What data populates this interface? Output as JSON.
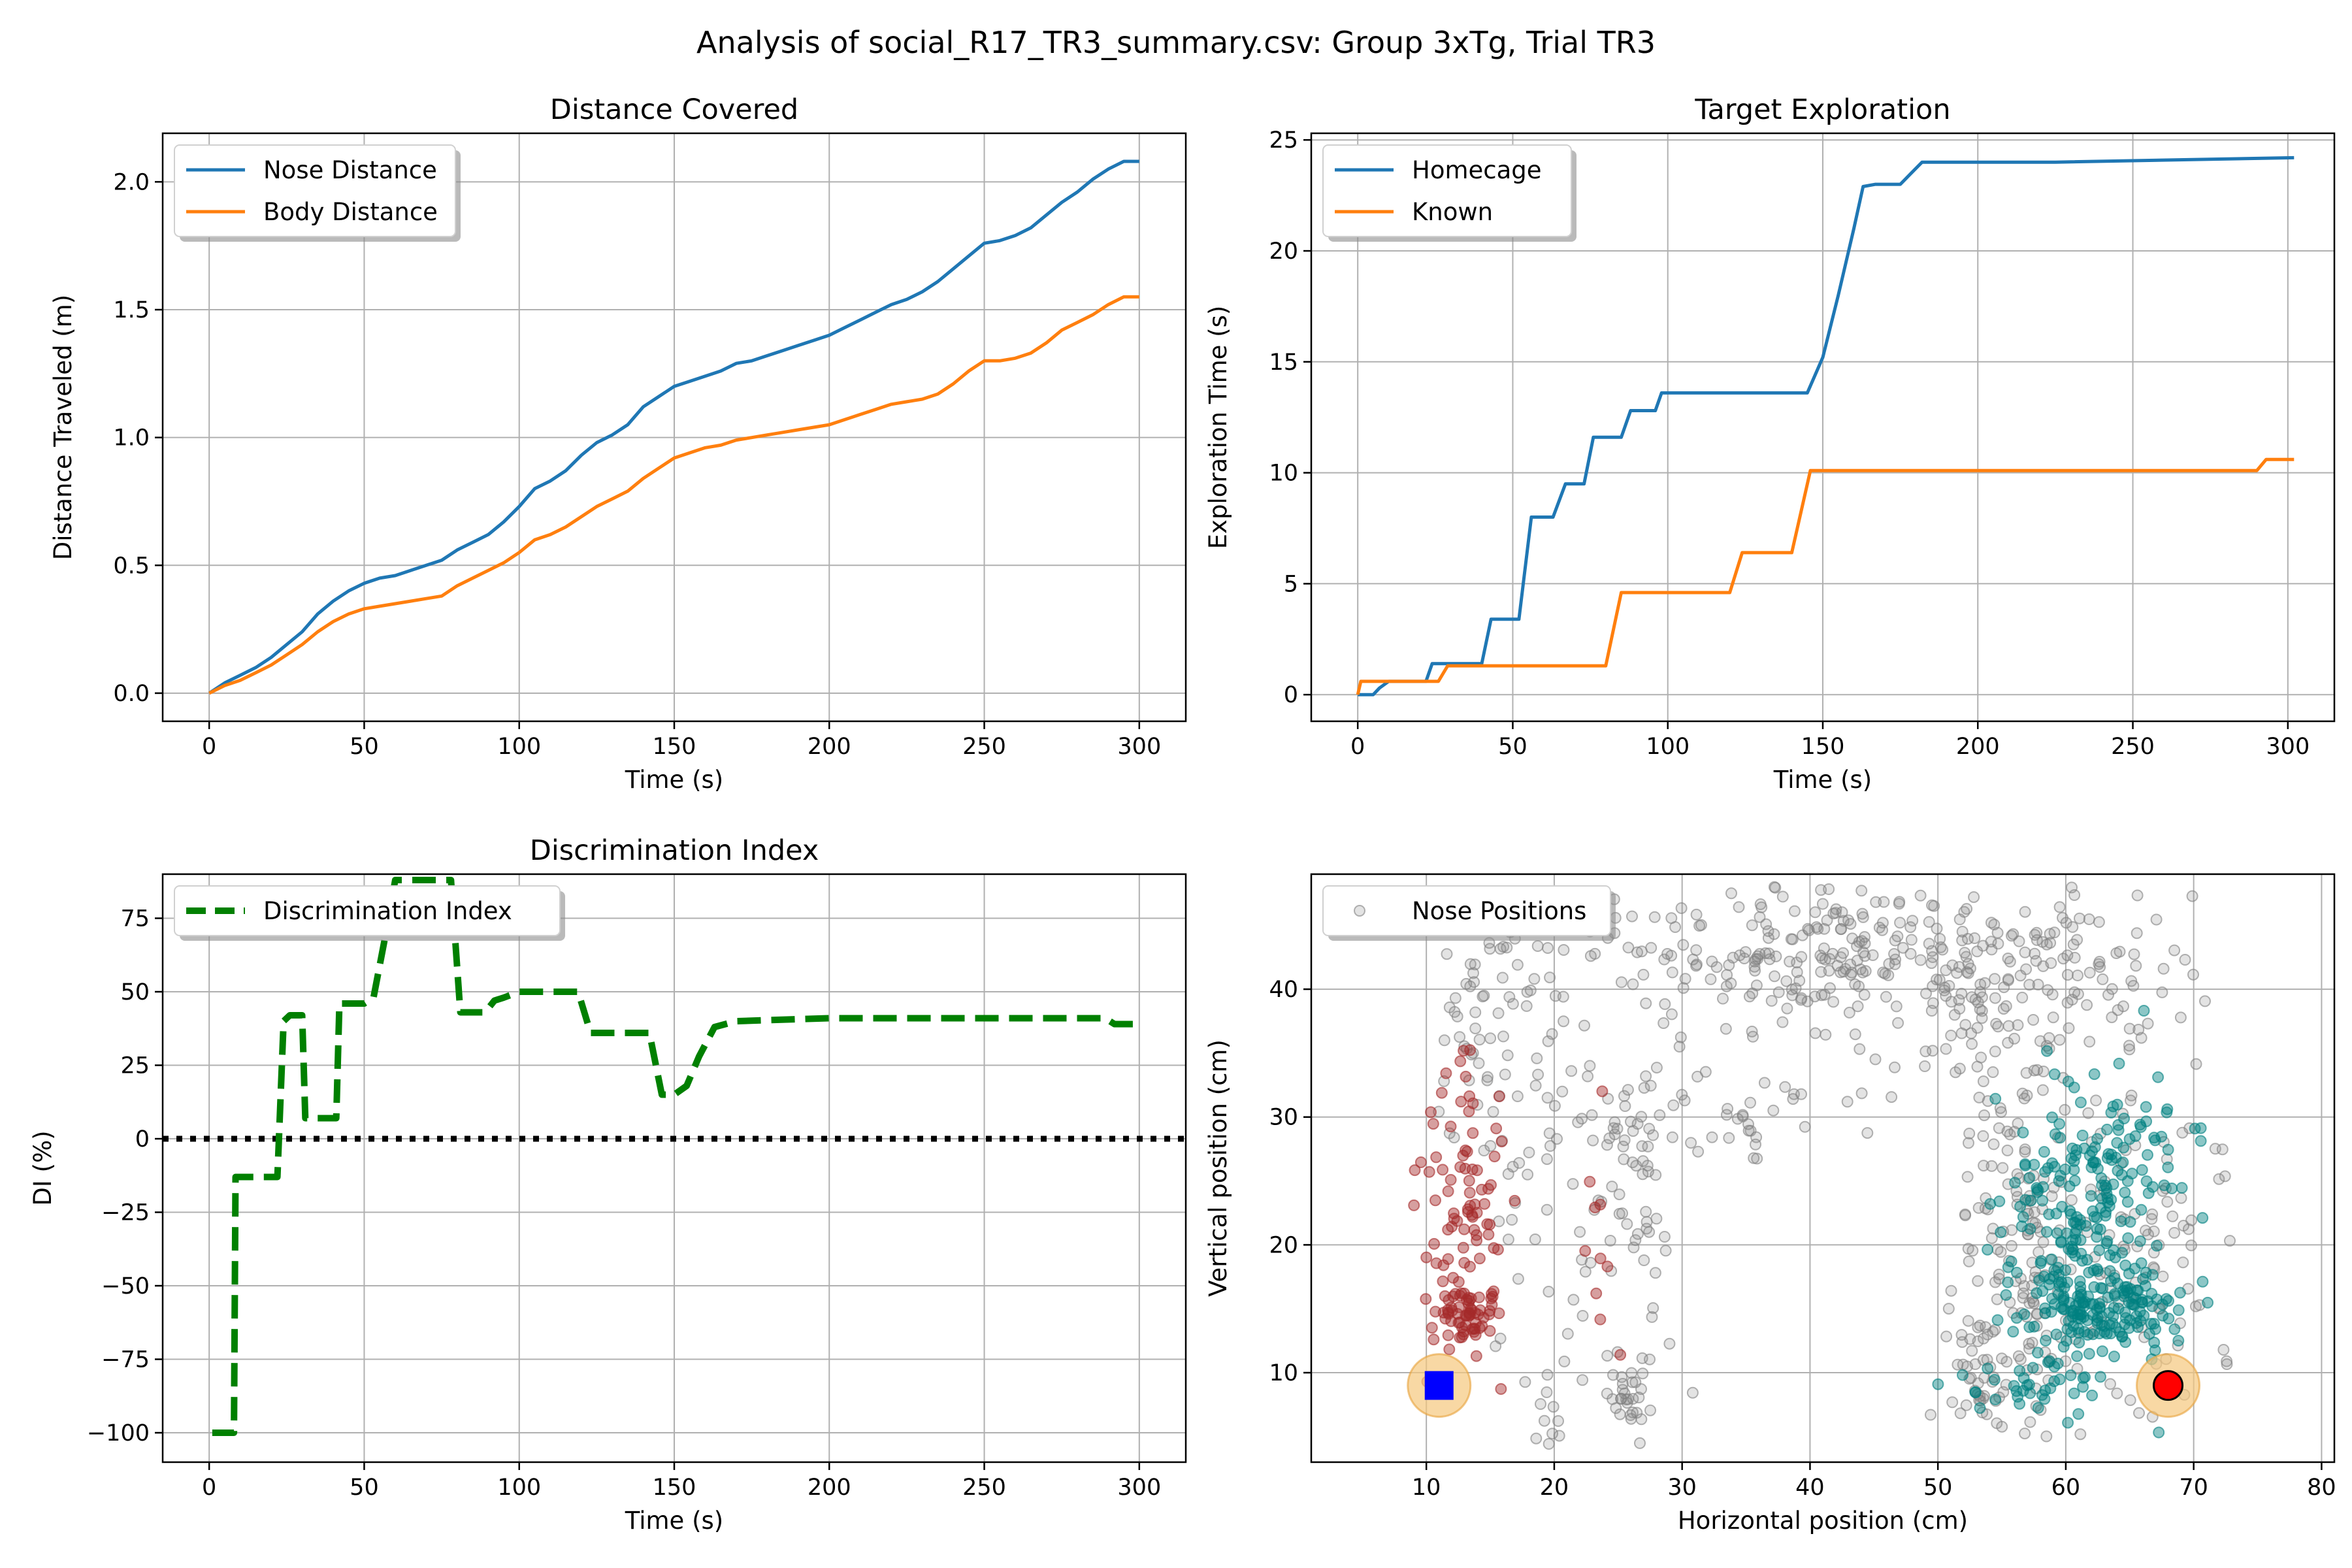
{
  "figure_title": "Analysis of social_R17_TR3_summary.csv: Group 3xTg, Trial TR3",
  "colors": {
    "blue": "#1f77b4",
    "orange": "#ff7f0e",
    "green": "#008000",
    "grid": "#b0b0b0",
    "gray": "#808080",
    "brown": "#a52a2a",
    "teal": "#008080",
    "object_halo": "#f5c77e"
  },
  "chart_data": [
    {
      "type": "line",
      "title": "Distance Covered",
      "xlabel": "Time (s)",
      "ylabel": "Distance Traveled (m)",
      "xlim": [
        -15,
        315
      ],
      "ylim": [
        -0.11,
        2.19
      ],
      "xticks": [
        0,
        50,
        100,
        150,
        200,
        250,
        300
      ],
      "yticks": [
        0.0,
        0.5,
        1.0,
        1.5,
        2.0
      ],
      "ytick_labels": [
        "0.0",
        "0.5",
        "1.0",
        "1.5",
        "2.0"
      ],
      "grid": true,
      "legend": "upper-left",
      "series": [
        {
          "name": "Nose Distance",
          "color": "#1f77b4",
          "x": [
            0,
            5,
            10,
            15,
            20,
            25,
            30,
            35,
            40,
            45,
            50,
            55,
            60,
            65,
            70,
            75,
            80,
            85,
            90,
            95,
            100,
            105,
            110,
            115,
            120,
            125,
            130,
            135,
            140,
            145,
            150,
            155,
            160,
            165,
            170,
            175,
            180,
            185,
            190,
            195,
            200,
            205,
            210,
            215,
            220,
            225,
            230,
            235,
            240,
            245,
            250,
            255,
            260,
            265,
            270,
            275,
            280,
            285,
            290,
            295,
            300
          ],
          "y": [
            0.0,
            0.04,
            0.07,
            0.1,
            0.14,
            0.19,
            0.24,
            0.31,
            0.36,
            0.4,
            0.43,
            0.45,
            0.46,
            0.48,
            0.5,
            0.52,
            0.56,
            0.59,
            0.62,
            0.67,
            0.73,
            0.8,
            0.83,
            0.87,
            0.93,
            0.98,
            1.01,
            1.05,
            1.12,
            1.16,
            1.2,
            1.22,
            1.24,
            1.26,
            1.29,
            1.3,
            1.32,
            1.34,
            1.36,
            1.38,
            1.4,
            1.43,
            1.46,
            1.49,
            1.52,
            1.54,
            1.57,
            1.61,
            1.66,
            1.71,
            1.76,
            1.77,
            1.79,
            1.82,
            1.87,
            1.92,
            1.96,
            2.01,
            2.05,
            2.08,
            2.08
          ]
        },
        {
          "name": "Body Distance",
          "color": "#ff7f0e",
          "x": [
            0,
            5,
            10,
            15,
            20,
            25,
            30,
            35,
            40,
            45,
            50,
            55,
            60,
            65,
            70,
            75,
            80,
            85,
            90,
            95,
            100,
            105,
            110,
            115,
            120,
            125,
            130,
            135,
            140,
            145,
            150,
            155,
            160,
            165,
            170,
            175,
            180,
            185,
            190,
            195,
            200,
            205,
            210,
            215,
            220,
            225,
            230,
            235,
            240,
            245,
            250,
            255,
            260,
            265,
            270,
            275,
            280,
            285,
            290,
            295,
            300
          ],
          "y": [
            0.0,
            0.03,
            0.05,
            0.08,
            0.11,
            0.15,
            0.19,
            0.24,
            0.28,
            0.31,
            0.33,
            0.34,
            0.35,
            0.36,
            0.37,
            0.38,
            0.42,
            0.45,
            0.48,
            0.51,
            0.55,
            0.6,
            0.62,
            0.65,
            0.69,
            0.73,
            0.76,
            0.79,
            0.84,
            0.88,
            0.92,
            0.94,
            0.96,
            0.97,
            0.99,
            1.0,
            1.01,
            1.02,
            1.03,
            1.04,
            1.05,
            1.07,
            1.09,
            1.11,
            1.13,
            1.14,
            1.15,
            1.17,
            1.21,
            1.26,
            1.3,
            1.3,
            1.31,
            1.33,
            1.37,
            1.42,
            1.45,
            1.48,
            1.52,
            1.55,
            1.55
          ]
        }
      ]
    },
    {
      "type": "line",
      "title": "Target Exploration",
      "xlabel": "Time (s)",
      "ylabel": "Exploration Time (s)",
      "xlim": [
        -15,
        315
      ],
      "ylim": [
        -1.2,
        25.3
      ],
      "xticks": [
        0,
        50,
        100,
        150,
        200,
        250,
        300
      ],
      "yticks": [
        0,
        5,
        10,
        15,
        20,
        25
      ],
      "grid": true,
      "legend": "upper-left",
      "series": [
        {
          "name": "Homecage",
          "color": "#1f77b4",
          "x": [
            0,
            5,
            7,
            10,
            22,
            24,
            40,
            43,
            52,
            56,
            63,
            67,
            73,
            76,
            85,
            88,
            96,
            98,
            145,
            150,
            155,
            160,
            163,
            167,
            175,
            182,
            225,
            302
          ],
          "y": [
            0,
            0,
            0.3,
            0.6,
            0.6,
            1.4,
            1.4,
            3.4,
            3.4,
            8.0,
            8.0,
            9.5,
            9.5,
            11.6,
            11.6,
            12.8,
            12.8,
            13.6,
            13.6,
            15.2,
            18.0,
            21.0,
            22.9,
            23.0,
            23.0,
            24.0,
            24.0,
            24.2
          ]
        },
        {
          "name": "Known",
          "color": "#ff7f0e",
          "x": [
            0,
            1,
            26,
            29,
            80,
            85,
            120,
            124,
            140,
            146,
            290,
            293,
            302
          ],
          "y": [
            0,
            0.6,
            0.6,
            1.3,
            1.3,
            4.6,
            4.6,
            6.4,
            6.4,
            10.1,
            10.1,
            10.6,
            10.6
          ]
        }
      ]
    },
    {
      "type": "line",
      "title": "Discrimination Index",
      "xlabel": "Time (s)",
      "ylabel": "DI (%)",
      "xlim": [
        -15,
        315
      ],
      "ylim": [
        -110,
        90
      ],
      "xticks": [
        0,
        50,
        100,
        150,
        200,
        250,
        300
      ],
      "yticks": [
        -100,
        -75,
        -50,
        -25,
        0,
        25,
        50,
        75
      ],
      "ytick_labels": [
        "−100",
        "−75",
        "−50",
        "−25",
        "0",
        "25",
        "50",
        "75"
      ],
      "grid": true,
      "legend": "upper-left",
      "reference_line": {
        "y": 0,
        "style": "dotted",
        "color": "#000000"
      },
      "series": [
        {
          "name": "Discrimination Index",
          "color": "#008000",
          "style": "dashed",
          "x": [
            1,
            8,
            8.5,
            22,
            24,
            26,
            30,
            31,
            41,
            42,
            50,
            53,
            57,
            60,
            78,
            81,
            89,
            92,
            95,
            100,
            106,
            119,
            123,
            142,
            146,
            150,
            154,
            158,
            163,
            170,
            200,
            289,
            292,
            300
          ],
          "y": [
            -100,
            -100,
            -13,
            -13,
            40,
            42,
            42,
            7,
            7,
            46,
            46,
            48,
            70,
            88,
            88,
            43,
            43,
            47,
            48,
            50,
            50,
            50,
            36,
            36,
            15,
            15,
            18,
            28,
            38,
            40,
            41,
            41,
            39,
            39
          ]
        }
      ]
    },
    {
      "type": "scatter",
      "title": "",
      "xlabel": "Horizontal position (cm)",
      "ylabel": "Vertical position (cm)",
      "xlim": [
        1,
        81
      ],
      "ylim": [
        3,
        49
      ],
      "xticks": [
        10,
        20,
        30,
        40,
        50,
        60,
        70,
        80
      ],
      "yticks": [
        10,
        20,
        30,
        40
      ],
      "grid": true,
      "legend": "upper-left",
      "series": [
        {
          "name": "Nose Positions",
          "color": "#808080",
          "clusters": [
            {
              "cx": 14.5,
              "cy": 36,
              "sx": 2.5,
              "sy": 8,
              "n": 80
            },
            {
              "cx": 22,
              "cy": 22,
              "sx": 3,
              "sy": 10,
              "n": 70
            },
            {
              "cx": 26,
              "cy": 8,
              "sx": 1,
              "sy": 1.2,
              "n": 25
            },
            {
              "cx": 20,
              "cy": 5.5,
              "sx": 1,
              "sy": 0.8,
              "n": 10
            },
            {
              "cx": 27,
              "cy": 25,
              "sx": 1.5,
              "sy": 6,
              "n": 40
            },
            {
              "cx": 35,
              "cy": 43,
              "sx": 7,
              "sy": 2.5,
              "n": 120
            },
            {
              "cx": 43,
              "cy": 42,
              "sx": 5,
              "sy": 3,
              "n": 90
            },
            {
              "cx": 34,
              "cy": 30,
              "sx": 5,
              "sy": 2,
              "n": 40
            },
            {
              "cx": 52,
              "cy": 40,
              "sx": 3,
              "sy": 3,
              "n": 80
            },
            {
              "cx": 61,
              "cy": 42,
              "sx": 6,
              "sy": 4,
              "n": 100
            },
            {
              "cx": 57,
              "cy": 22,
              "sx": 3,
              "sy": 9,
              "n": 150
            },
            {
              "cx": 54,
              "cy": 10,
              "sx": 2,
              "sy": 3,
              "n": 50
            },
            {
              "cx": 66,
              "cy": 20,
              "sx": 4,
              "sy": 7,
              "n": 90
            }
          ]
        },
        {
          "name": "",
          "color": "#a52a2a",
          "clusters": [
            {
              "cx": 13,
              "cy": 14.5,
              "sx": 1.2,
              "sy": 1.0,
              "n": 60
            },
            {
              "cx": 13,
              "cy": 22,
              "sx": 1.5,
              "sy": 5.5,
              "n": 70
            },
            {
              "cx": 11.5,
              "cy": 27,
              "sx": 0.9,
              "sy": 3,
              "n": 15
            },
            {
              "cx": 23.5,
              "cy": 19,
              "sx": 0.9,
              "sy": 5,
              "n": 10
            }
          ]
        },
        {
          "name": "",
          "color": "#008080",
          "clusters": [
            {
              "cx": 63,
              "cy": 15,
              "sx": 3,
              "sy": 1.6,
              "n": 140
            },
            {
              "cx": 61,
              "cy": 22,
              "sx": 3.2,
              "sy": 5,
              "n": 170
            },
            {
              "cx": 64,
              "cy": 28,
              "sx": 3,
              "sy": 3,
              "n": 50
            },
            {
              "cx": 58,
              "cy": 9,
              "sx": 3,
              "sy": 1.2,
              "n": 40
            }
          ]
        }
      ],
      "objects": [
        {
          "shape": "square",
          "x": 11,
          "y": 9,
          "color": "#0000ff"
        },
        {
          "shape": "circle",
          "x": 68,
          "y": 9,
          "color": "#ff0000"
        }
      ]
    }
  ]
}
